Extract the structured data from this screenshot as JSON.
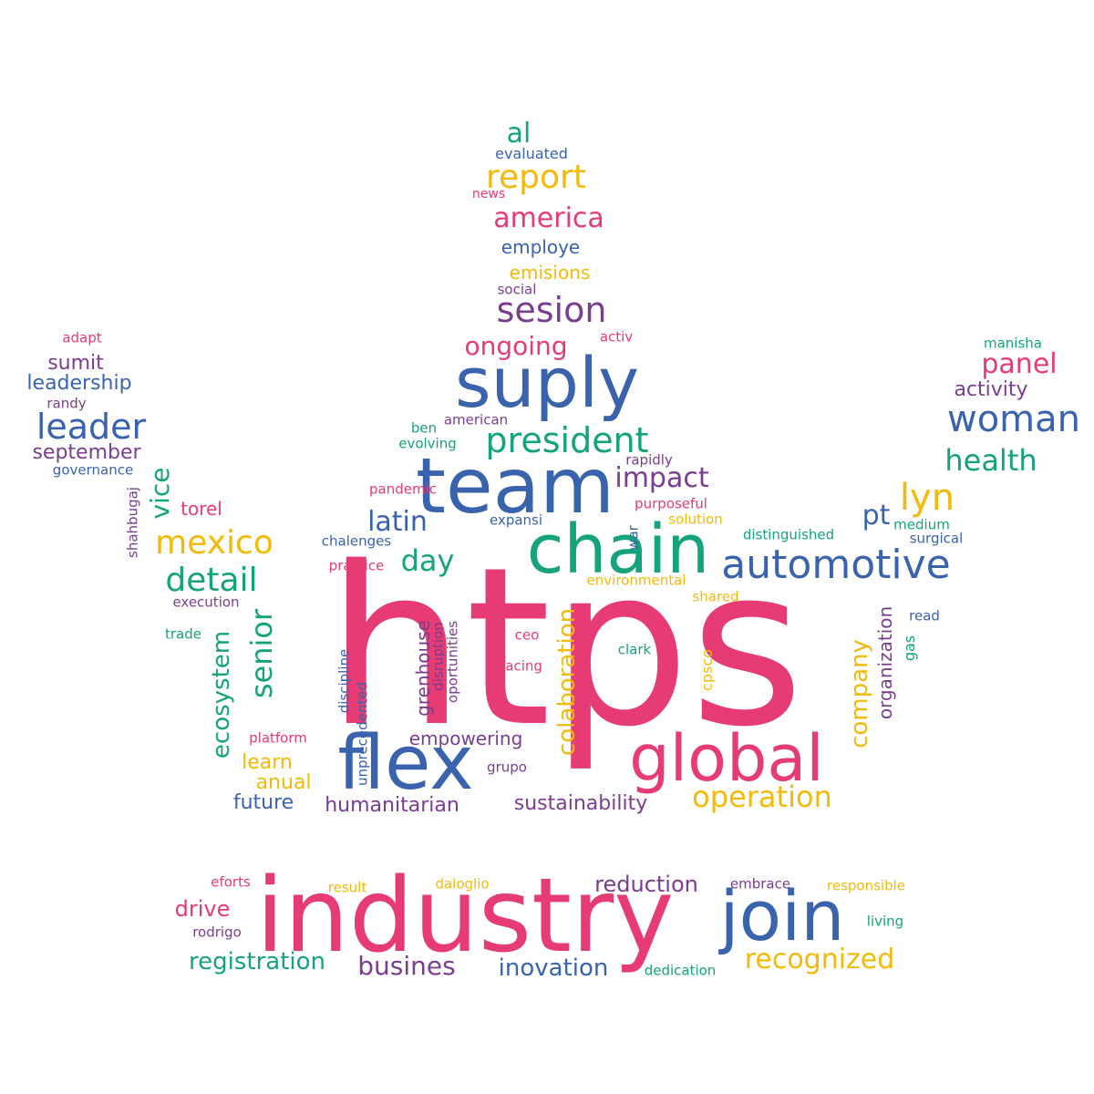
{
  "palette": {
    "pink": "#e63c73",
    "blue": "#3a63ae",
    "green": "#14a37c",
    "yellow": "#f2ba0a",
    "purple": "#7a3d8f"
  },
  "words": [
    {
      "text": "htps",
      "color": "pink"
    },
    {
      "text": "industry",
      "color": "pink"
    },
    {
      "text": "team",
      "color": "blue"
    },
    {
      "text": "suply",
      "color": "blue"
    },
    {
      "text": "chain",
      "color": "green"
    },
    {
      "text": "flex",
      "color": "blue"
    },
    {
      "text": "global",
      "color": "pink"
    },
    {
      "text": "join",
      "color": "blue"
    },
    {
      "text": "automotive",
      "color": "blue"
    },
    {
      "text": "president",
      "color": "green"
    },
    {
      "text": "woman",
      "color": "blue"
    },
    {
      "text": "sesion",
      "color": "purple"
    },
    {
      "text": "report",
      "color": "yellow"
    },
    {
      "text": "america",
      "color": "pink"
    },
    {
      "text": "leader",
      "color": "blue"
    },
    {
      "text": "mexico",
      "color": "yellow"
    },
    {
      "text": "detail",
      "color": "green"
    },
    {
      "text": "latin",
      "color": "blue"
    },
    {
      "text": "day",
      "color": "green"
    },
    {
      "text": "impact",
      "color": "purple"
    },
    {
      "text": "lyn",
      "color": "yellow"
    },
    {
      "text": "pt",
      "color": "blue"
    },
    {
      "text": "health",
      "color": "green"
    },
    {
      "text": "panel",
      "color": "pink"
    },
    {
      "text": "ongoing",
      "color": "pink"
    },
    {
      "text": "operation",
      "color": "yellow"
    },
    {
      "text": "recognized",
      "color": "yellow"
    },
    {
      "text": "busines",
      "color": "purple"
    },
    {
      "text": "registration",
      "color": "green"
    },
    {
      "text": "inovation",
      "color": "blue"
    },
    {
      "text": "reduction",
      "color": "purple"
    },
    {
      "text": "drive",
      "color": "pink"
    },
    {
      "text": "sustainability",
      "color": "purple"
    },
    {
      "text": "humanitarian",
      "color": "purple"
    },
    {
      "text": "future",
      "color": "blue"
    },
    {
      "text": "anual",
      "color": "yellow"
    },
    {
      "text": "learn",
      "color": "yellow"
    },
    {
      "text": "empowering",
      "color": "purple"
    },
    {
      "text": "al",
      "color": "green"
    },
    {
      "text": "evaluated",
      "color": "blue"
    },
    {
      "text": "news",
      "color": "pink"
    },
    {
      "text": "employe",
      "color": "blue"
    },
    {
      "text": "emisions",
      "color": "yellow"
    },
    {
      "text": "social",
      "color": "purple"
    },
    {
      "text": "activ",
      "color": "pink"
    },
    {
      "text": "american",
      "color": "purple"
    },
    {
      "text": "ben",
      "color": "green"
    },
    {
      "text": "evolving",
      "color": "green"
    },
    {
      "text": "rapidly",
      "color": "purple"
    },
    {
      "text": "pandemic",
      "color": "pink"
    },
    {
      "text": "purposeful",
      "color": "pink"
    },
    {
      "text": "solution",
      "color": "yellow"
    },
    {
      "text": "expansi",
      "color": "blue"
    },
    {
      "text": "chalenges",
      "color": "blue"
    },
    {
      "text": "practice",
      "color": "pink"
    },
    {
      "text": "environmental",
      "color": "yellow"
    },
    {
      "text": "shared",
      "color": "yellow"
    },
    {
      "text": "execution",
      "color": "purple"
    },
    {
      "text": "trade",
      "color": "green"
    },
    {
      "text": "torel",
      "color": "pink"
    },
    {
      "text": "distinguished",
      "color": "green"
    },
    {
      "text": "medium",
      "color": "green"
    },
    {
      "text": "surgical",
      "color": "blue"
    },
    {
      "text": "read",
      "color": "blue"
    },
    {
      "text": "ceo",
      "color": "pink"
    },
    {
      "text": "facing",
      "color": "pink"
    },
    {
      "text": "clark",
      "color": "green"
    },
    {
      "text": "platform",
      "color": "pink"
    },
    {
      "text": "grupo",
      "color": "purple"
    },
    {
      "text": "adapt",
      "color": "pink"
    },
    {
      "text": "sumit",
      "color": "purple"
    },
    {
      "text": "leadership",
      "color": "blue"
    },
    {
      "text": "randy",
      "color": "purple"
    },
    {
      "text": "september",
      "color": "purple"
    },
    {
      "text": "governance",
      "color": "blue"
    },
    {
      "text": "manisha",
      "color": "green"
    },
    {
      "text": "activity",
      "color": "purple"
    },
    {
      "text": "eforts",
      "color": "pink"
    },
    {
      "text": "result",
      "color": "yellow"
    },
    {
      "text": "daloglio",
      "color": "yellow"
    },
    {
      "text": "embrace",
      "color": "purple"
    },
    {
      "text": "responsible",
      "color": "yellow"
    },
    {
      "text": "living",
      "color": "green"
    },
    {
      "text": "rodrigo",
      "color": "purple"
    },
    {
      "text": "dedication",
      "color": "green"
    },
    {
      "text": "vice",
      "color": "green"
    },
    {
      "text": "ecosystem",
      "color": "green"
    },
    {
      "text": "senior",
      "color": "green"
    },
    {
      "text": "shahbugaj",
      "color": "purple"
    },
    {
      "text": "colaboration",
      "color": "yellow"
    },
    {
      "text": "company",
      "color": "yellow"
    },
    {
      "text": "organization",
      "color": "purple"
    },
    {
      "text": "gas",
      "color": "green"
    },
    {
      "text": "cpsco",
      "color": "yellow"
    },
    {
      "text": "grenhouse",
      "color": "purple"
    },
    {
      "text": "disruption",
      "color": "purple"
    },
    {
      "text": "oportunities",
      "color": "purple"
    },
    {
      "text": "discipline",
      "color": "blue"
    },
    {
      "text": "unprecedented",
      "color": "blue"
    },
    {
      "text": "war",
      "color": "blue"
    }
  ]
}
